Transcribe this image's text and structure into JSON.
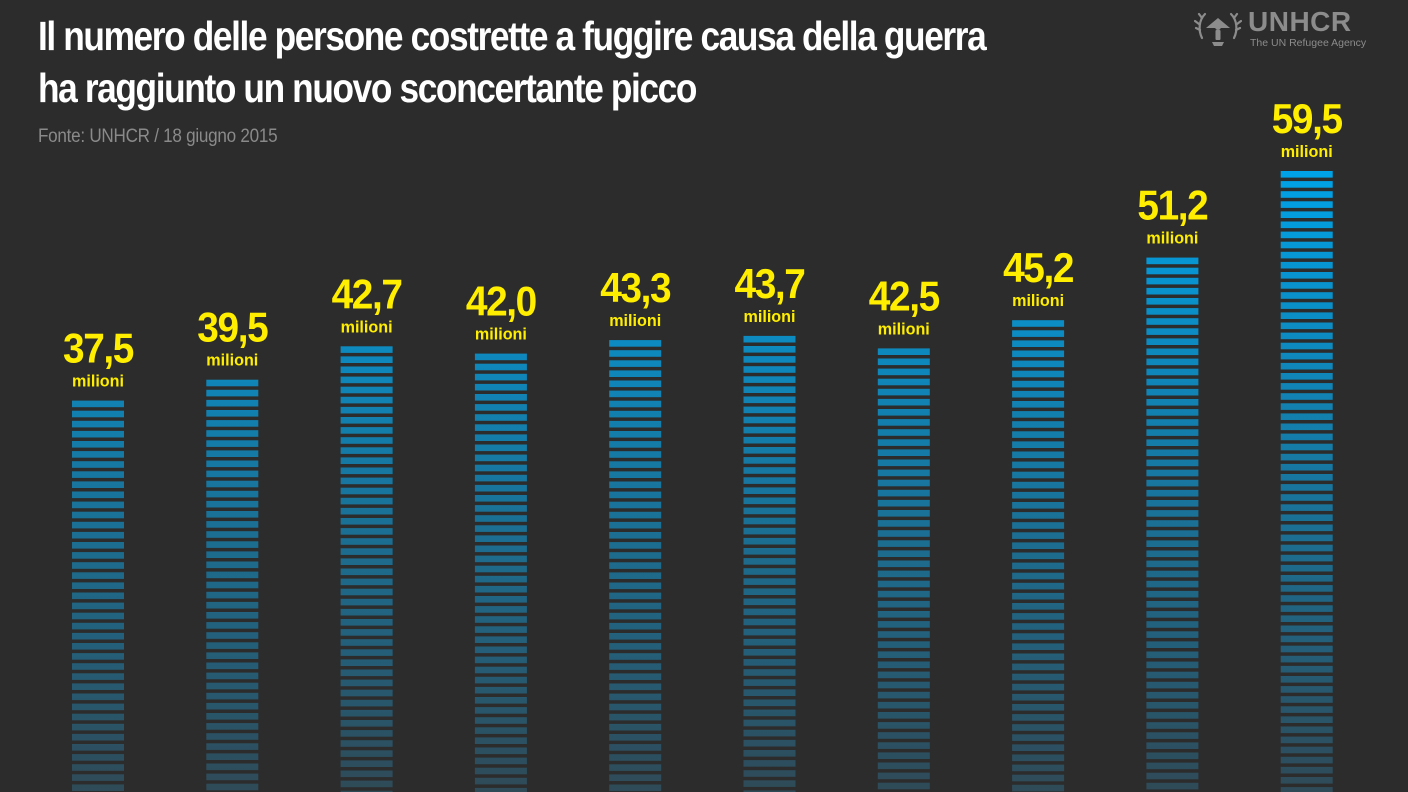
{
  "header": {
    "title_line1": "Il numero delle persone costrette a fuggire causa della guerra",
    "title_line2": "ha raggiunto un nuovo sconcertante picco",
    "source": "Fonte: UNHCR / 18 giugno 2015"
  },
  "logo": {
    "name": "UNHCR",
    "tagline": "The UN Refugee Agency",
    "icon": "unhcr-emblem-icon"
  },
  "colors": {
    "background": "#2c2c2c",
    "bar_top": "#00a3e8",
    "bar_bottom": "#2f4a57",
    "label": "#ffee00",
    "title": "#ffffff",
    "source": "#8a8a8a"
  },
  "chart_data": {
    "type": "bar",
    "title": "Il numero delle persone costrette a fuggire causa della guerra ha raggiunto un nuovo sconcertante picco",
    "xlabel": "",
    "ylabel": "",
    "ylim": [
      0,
      59.5
    ],
    "grid": false,
    "legend": "none",
    "value_labels": [
      "37,5",
      "39,5",
      "42,7",
      "42,0",
      "43,3",
      "43,7",
      "42,5",
      "45,2",
      "51,2",
      "59,5"
    ],
    "unit_label": "milioni",
    "values": [
      37.5,
      39.5,
      42.7,
      42.0,
      43.3,
      43.7,
      42.5,
      45.2,
      51.2,
      59.5
    ]
  }
}
